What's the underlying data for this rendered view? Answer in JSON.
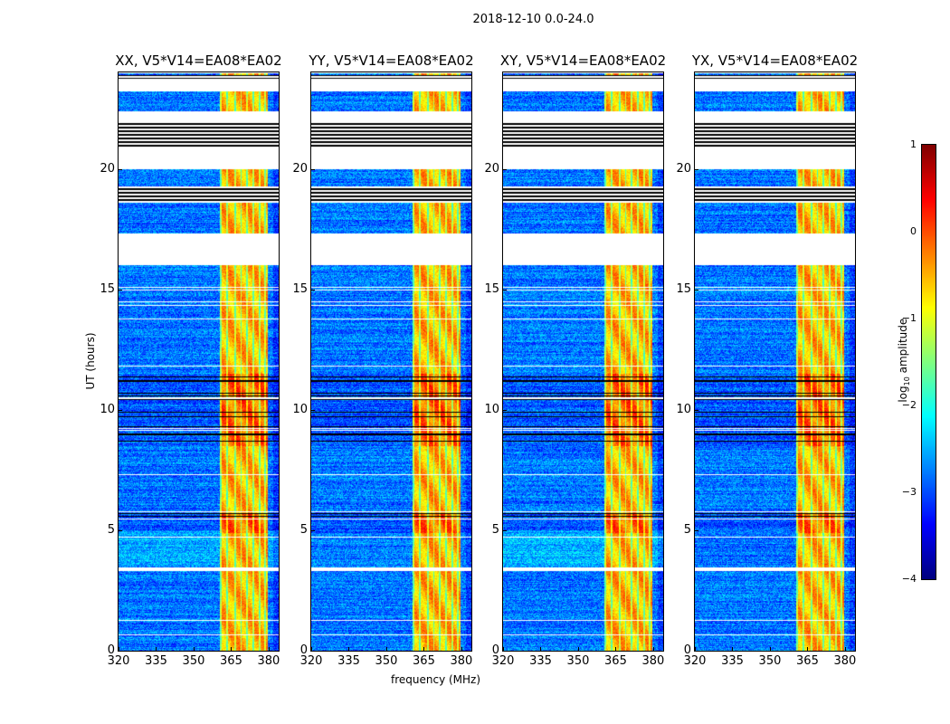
{
  "chart_data": {
    "type": "heatmap",
    "title": "2018-12-10 0.0-24.0",
    "xlabel": "frequency (MHz)",
    "ylabel": "UT (hours)",
    "xlim": [
      320,
      384
    ],
    "ylim": [
      0,
      24
    ],
    "xticks": [
      "320",
      "335",
      "350",
      "365",
      "380"
    ],
    "xtick_values": [
      320,
      335,
      350,
      365,
      380
    ],
    "yticks": [
      "0",
      "5",
      "10",
      "15",
      "20"
    ],
    "ytick_values": [
      0,
      5,
      10,
      15,
      20
    ],
    "panels": [
      {
        "title": "XX, V5*V14=EA08*EA02"
      },
      {
        "title": "YY, V5*V14=EA08*EA02"
      },
      {
        "title": "XY, V5*V14=EA08*EA02"
      },
      {
        "title": "YX, V5*V14=EA08*EA02"
      }
    ],
    "colorbar": {
      "label": "log10 amplitude",
      "label_main": "log",
      "label_sub": "10",
      "label_rest": " amplitude",
      "range": [
        -4,
        1
      ],
      "ticks": [
        "1",
        "0",
        "−1",
        "−2",
        "−3",
        "−4"
      ],
      "tick_values": [
        1,
        0,
        -1,
        -2,
        -3,
        -4
      ],
      "colormap": "jet"
    },
    "rfi_band_mhz": [
      360.5,
      379.5
    ],
    "background_level": -2.8,
    "rfi_level": -0.5,
    "blank_intervals_hours": [
      [
        23.2,
        23.7
      ],
      [
        21.9,
        22.4
      ],
      [
        20.0,
        20.9
      ],
      [
        16.0,
        17.3
      ],
      [
        3.3,
        3.45
      ]
    ],
    "flagged_intervals_hours": [
      [
        20.9,
        21.9
      ],
      [
        18.6,
        19.25
      ]
    ],
    "dark_intervals_hours": [
      [
        4.9,
        5.7
      ],
      [
        8.5,
        11.5
      ]
    ]
  }
}
